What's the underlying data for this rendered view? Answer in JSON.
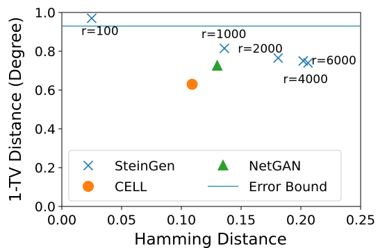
{
  "chart_data": {
    "type": "scatter",
    "xlabel": "Hamming Distance",
    "ylabel": "1-TV Distance (Degree)",
    "xlim": [
      0.0,
      0.25
    ],
    "ylim": [
      0.0,
      1.0
    ],
    "xticks": [
      "0.00",
      "0.05",
      "0.10",
      "0.15",
      "0.20",
      "0.25"
    ],
    "yticks": [
      "0.0",
      "0.2",
      "0.4",
      "0.6",
      "0.8",
      "1.0"
    ],
    "grid": false,
    "legend_position": "lower-center",
    "series": [
      {
        "name": "SteinGen",
        "marker": "x",
        "color": "#1f77b4",
        "points": [
          {
            "x": 0.025,
            "y": 0.97,
            "label": "r=100"
          },
          {
            "x": 0.136,
            "y": 0.815,
            "label": "r=1000"
          },
          {
            "x": 0.181,
            "y": 0.765,
            "label": "r=2000"
          },
          {
            "x": 0.202,
            "y": 0.75,
            "label": "r=4000"
          },
          {
            "x": 0.206,
            "y": 0.74,
            "label": "r=6000"
          }
        ]
      },
      {
        "name": "CELL",
        "marker": "circle",
        "color": "#ff7f0e",
        "points": [
          {
            "x": 0.109,
            "y": 0.63
          }
        ]
      },
      {
        "name": "NetGAN",
        "marker": "triangle",
        "color": "#2ca02c",
        "points": [
          {
            "x": 0.13,
            "y": 0.725
          }
        ]
      }
    ],
    "error_bound": {
      "name": "Error Bound",
      "y": 0.93,
      "color": "#3a9ca8"
    }
  }
}
